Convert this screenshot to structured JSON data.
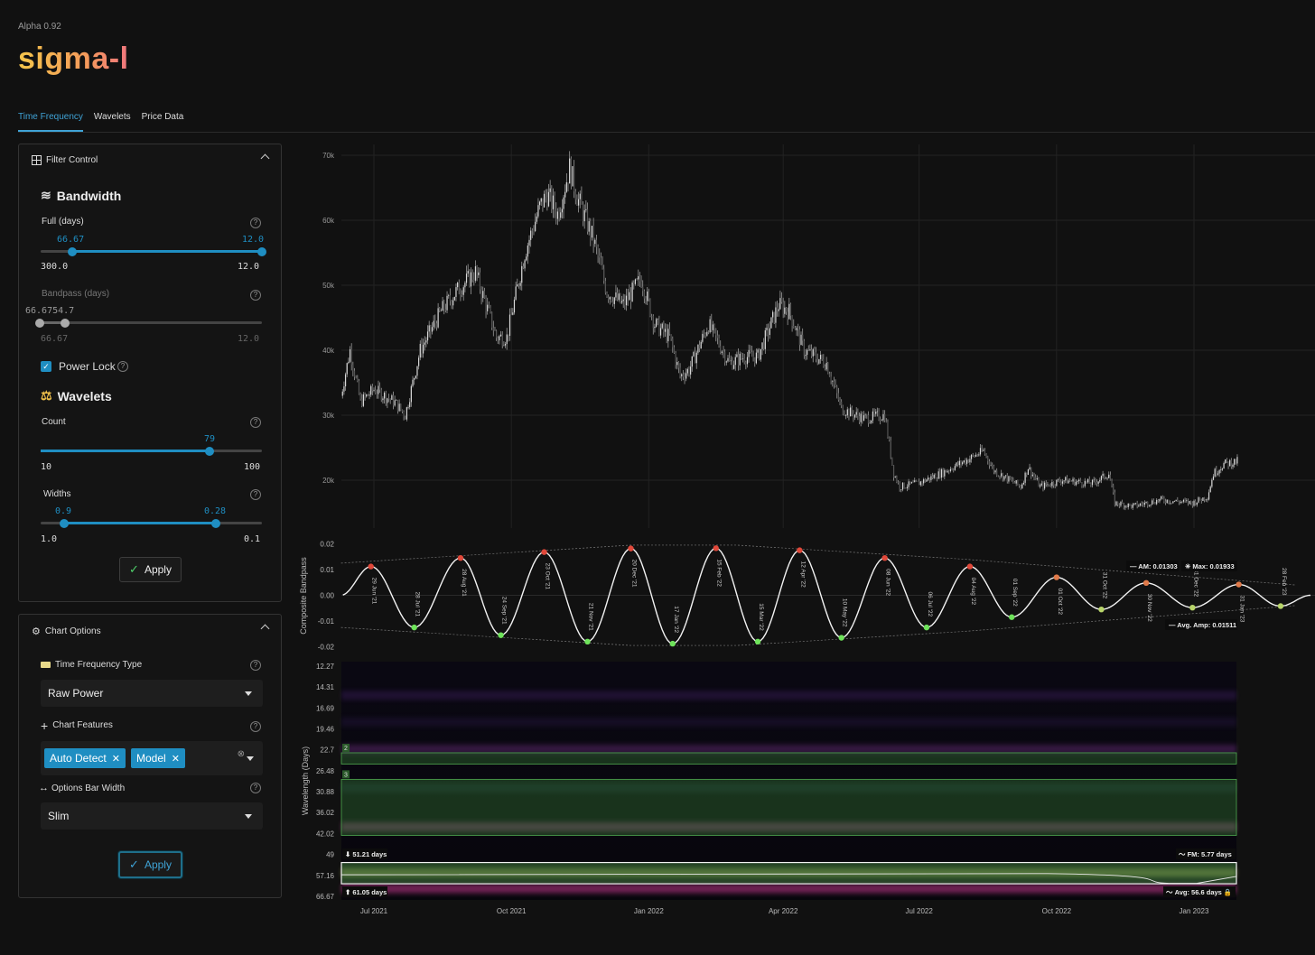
{
  "app": {
    "version": "Alpha 0.92",
    "logo": "sigma-l"
  },
  "tabs": [
    {
      "label": "Time Frequency",
      "active": true
    },
    {
      "label": "Wavelets",
      "active": false
    },
    {
      "label": "Price Data",
      "active": false
    }
  ],
  "filter_control": {
    "title": "Filter Control",
    "bandwidth": {
      "title": "Bandwidth",
      "full": {
        "label": "Full (days)",
        "low_value": "66.67",
        "high_value": "12.0",
        "min_label": "300.0",
        "max_label": "12.0"
      },
      "bandpass": {
        "label": "Bandpass (days)",
        "value_label": "66.6754.7",
        "min_label": "66.67",
        "max_label": "12.0"
      }
    },
    "power_lock": {
      "label": "Power Lock",
      "checked": true
    },
    "wavelets": {
      "title": "Wavelets",
      "count": {
        "label": "Count",
        "value": "79",
        "min_label": "10",
        "max_label": "100"
      },
      "widths": {
        "label": "Widths",
        "low_value": "0.9",
        "high_value": "0.28",
        "min_label": "1.0",
        "max_label": "0.1"
      }
    },
    "apply_label": "Apply"
  },
  "chart_options": {
    "title": "Chart Options",
    "tf_type": {
      "label": "Time Frequency Type",
      "selected": "Raw Power"
    },
    "chart_features": {
      "label": "Chart Features",
      "chips": [
        "Auto Detect",
        "Model"
      ]
    },
    "bar_width": {
      "label": "Options Bar Width",
      "selected": "Slim"
    },
    "apply_label": "Apply"
  },
  "colors": {
    "accent": "#1f8ec2",
    "peak": "#e0483a",
    "trough": "#6ee35a",
    "panel_bg": "#141414"
  },
  "chart_data": [
    {
      "type": "candlestick",
      "title": "",
      "ylim": [
        12000,
        72000
      ],
      "y_ticks": [
        "70k",
        "60k",
        "50k",
        "40k",
        "30k",
        "20k"
      ],
      "y_tick_values": [
        70000,
        60000,
        50000,
        40000,
        30000,
        20000
      ],
      "x_range": [
        "2021-06-09",
        "2023-02-20"
      ],
      "close_path": [
        [
          "2021-06-09",
          33000
        ],
        [
          "2021-06-15",
          40000
        ],
        [
          "2021-06-22",
          32000
        ],
        [
          "2021-07-01",
          34000
        ],
        [
          "2021-07-15",
          32000
        ],
        [
          "2021-07-22",
          30000
        ],
        [
          "2021-08-01",
          40000
        ],
        [
          "2021-08-15",
          46000
        ],
        [
          "2021-08-25",
          49000
        ],
        [
          "2021-09-07",
          52000
        ],
        [
          "2021-09-21",
          42000
        ],
        [
          "2021-09-28",
          42000
        ],
        [
          "2021-10-10",
          55000
        ],
        [
          "2021-10-20",
          62000
        ],
        [
          "2021-10-25",
          64000
        ],
        [
          "2021-11-01",
          61000
        ],
        [
          "2021-11-09",
          68000
        ],
        [
          "2021-11-15",
          63000
        ],
        [
          "2021-11-25",
          57000
        ],
        [
          "2021-12-04",
          49000
        ],
        [
          "2021-12-15",
          47000
        ],
        [
          "2021-12-27",
          51000
        ],
        [
          "2022-01-05",
          44000
        ],
        [
          "2022-01-15",
          42000
        ],
        [
          "2022-01-22",
          36000
        ],
        [
          "2022-01-28",
          37000
        ],
        [
          "2022-02-10",
          44000
        ],
        [
          "2022-02-24",
          38000
        ],
        [
          "2022-03-06",
          39000
        ],
        [
          "2022-03-15",
          39000
        ],
        [
          "2022-03-29",
          47000
        ],
        [
          "2022-04-05",
          46000
        ],
        [
          "2022-04-15",
          40000
        ],
        [
          "2022-04-30",
          38000
        ],
        [
          "2022-05-10",
          31000
        ],
        [
          "2022-05-25",
          29500
        ],
        [
          "2022-06-08",
          30000
        ],
        [
          "2022-06-14",
          21000
        ],
        [
          "2022-06-18",
          19000
        ],
        [
          "2022-06-30",
          19500
        ],
        [
          "2022-07-15",
          21000
        ],
        [
          "2022-08-01",
          23000
        ],
        [
          "2022-08-13",
          24500
        ],
        [
          "2022-08-20",
          21500
        ],
        [
          "2022-09-07",
          19000
        ],
        [
          "2022-09-12",
          22000
        ],
        [
          "2022-09-20",
          19000
        ],
        [
          "2022-10-05",
          20000
        ],
        [
          "2022-10-25",
          19500
        ],
        [
          "2022-11-05",
          21000
        ],
        [
          "2022-11-09",
          16500
        ],
        [
          "2022-11-21",
          16000
        ],
        [
          "2022-12-10",
          17000
        ],
        [
          "2022-12-31",
          16500
        ],
        [
          "2023-01-10",
          17500
        ],
        [
          "2023-01-14",
          21000
        ],
        [
          "2023-01-21",
          22500
        ],
        [
          "2023-02-01",
          23000
        ],
        [
          "2023-02-15",
          24500
        ],
        [
          "2023-02-20",
          24800
        ]
      ]
    },
    {
      "type": "line",
      "ylabel": "Composite Bandpass",
      "ylim": [
        -0.02,
        0.02
      ],
      "y_ticks": [
        "0.02",
        "0.01",
        "0.00",
        "-0.01",
        "-0.02"
      ],
      "y_tick_values": [
        0.02,
        0.01,
        0.0,
        -0.01,
        -0.02
      ],
      "points": [
        {
          "date": "2021-06-29",
          "value": 0.0112,
          "kind": "peak",
          "label": "29 Jun '21"
        },
        {
          "date": "2021-07-28",
          "value": -0.0125,
          "kind": "trough",
          "label": "28 Jul '21"
        },
        {
          "date": "2021-08-28",
          "value": 0.0145,
          "kind": "peak",
          "label": "28 Aug '21"
        },
        {
          "date": "2021-09-24",
          "value": -0.0155,
          "kind": "trough",
          "label": "24 Sep '21"
        },
        {
          "date": "2021-10-23",
          "value": 0.0168,
          "kind": "peak",
          "label": "23 Oct '21"
        },
        {
          "date": "2021-11-21",
          "value": -0.018,
          "kind": "trough",
          "label": "21 Nov '21"
        },
        {
          "date": "2021-12-20",
          "value": 0.0182,
          "kind": "peak",
          "label": "20 Dec '21"
        },
        {
          "date": "2022-01-17",
          "value": -0.0188,
          "kind": "trough",
          "label": "17 Jan '22"
        },
        {
          "date": "2022-02-15",
          "value": 0.0183,
          "kind": "peak",
          "label": "15 Feb '22"
        },
        {
          "date": "2022-03-15",
          "value": -0.018,
          "kind": "trough",
          "label": "15 Mar '22"
        },
        {
          "date": "2022-04-12",
          "value": 0.0175,
          "kind": "peak",
          "label": "12 Apr '22"
        },
        {
          "date": "2022-05-10",
          "value": -0.0165,
          "kind": "trough",
          "label": "10 May '22"
        },
        {
          "date": "2022-06-08",
          "value": 0.0145,
          "kind": "peak",
          "label": "08 Jun '22"
        },
        {
          "date": "2022-07-06",
          "value": -0.0125,
          "kind": "trough",
          "label": "06 Jul '22"
        },
        {
          "date": "2022-08-04",
          "value": 0.0112,
          "kind": "peak",
          "label": "04 Aug '22"
        },
        {
          "date": "2022-09-01",
          "value": -0.0085,
          "kind": "trough",
          "label": "01 Sep '22"
        },
        {
          "date": "2022-10-01",
          "value": 0.007,
          "kind": "peak",
          "label": "01 Oct '22"
        },
        {
          "date": "2022-10-31",
          "value": -0.0055,
          "kind": "trough",
          "label": "31 Oct '22"
        },
        {
          "date": "2022-11-30",
          "value": 0.0048,
          "kind": "peak",
          "label": "30 Nov '22"
        },
        {
          "date": "2022-12-31",
          "value": -0.0048,
          "kind": "trough",
          "label": "31 Dec '22"
        },
        {
          "date": "2023-01-31",
          "value": 0.0042,
          "kind": "peak",
          "label": "31 Jan '23"
        },
        {
          "date": "2023-02-28",
          "value": -0.0042,
          "kind": "trough",
          "label": "28 Feb '23"
        }
      ],
      "envelope_upper": [
        [
          "2021-06-09",
          0.0125
        ],
        [
          "2021-12-20",
          0.0195
        ],
        [
          "2022-03-01",
          0.0195
        ],
        [
          "2022-08-01",
          0.014
        ],
        [
          "2023-03-10",
          0.004
        ]
      ],
      "envelope_lower": [
        [
          "2021-06-09",
          -0.0125
        ],
        [
          "2021-12-20",
          -0.0195
        ],
        [
          "2022-03-01",
          -0.0195
        ],
        [
          "2022-08-01",
          -0.014
        ],
        [
          "2023-03-10",
          -0.004
        ]
      ],
      "annotations": {
        "am": "AM: 0.01303",
        "max": "Max: 0.01933",
        "avg_amp": "Avg. Amp: 0.01511"
      }
    },
    {
      "type": "heatmap",
      "ylabel": "Wavelength (Days)",
      "y_ticks": [
        "12.27",
        "14.31",
        "16.69",
        "19.46",
        "22.7",
        "26.48",
        "30.88",
        "36.02",
        "42.02",
        "49",
        "57.16",
        "66.67"
      ],
      "x_ticks": [
        {
          "label": "Jul 2021",
          "date": "2021-07-01"
        },
        {
          "label": "Oct 2021",
          "date": "2021-10-01"
        },
        {
          "label": "Jan 2022",
          "date": "2022-01-01"
        },
        {
          "label": "Apr 2022",
          "date": "2022-04-01"
        },
        {
          "label": "Jul 2022",
          "date": "2022-07-01"
        },
        {
          "label": "Oct 2022",
          "date": "2022-10-01"
        },
        {
          "label": "Jan 2023",
          "date": "2023-01-01"
        }
      ],
      "bands": [
        {
          "wavelength": 15.2,
          "color": "#5a2a8a",
          "intensity": 0.5
        },
        {
          "wavelength": 18.5,
          "color": "#4a2a7a",
          "intensity": 0.35
        },
        {
          "wavelength": 22.6,
          "color": "#9b3fb3",
          "intensity": 0.55
        },
        {
          "wavelength": 30.0,
          "color": "#3a6a7a",
          "intensity": 0.4
        },
        {
          "wavelength": 40.0,
          "color": "#c05aa0",
          "intensity": 0.85
        },
        {
          "wavelength": 56.0,
          "color": "#d8e070",
          "intensity": 0.9
        },
        {
          "wavelength": 63.0,
          "color": "#e040a0",
          "intensity": 0.9
        }
      ],
      "boxes": [
        {
          "label": "2",
          "wl_from": 23.2,
          "wl_to": 25.2
        },
        {
          "label": "3",
          "wl_from": 28.2,
          "wl_to": 42.6
        }
      ],
      "model_band": {
        "wl_from": 52.0,
        "wl_to": 60.8,
        "top_label": "51.21 days",
        "bottom_label": "61.05 days",
        "fm_label": "FM: 5.77 days",
        "avg_label": "Avg: 56.6 days"
      }
    }
  ]
}
